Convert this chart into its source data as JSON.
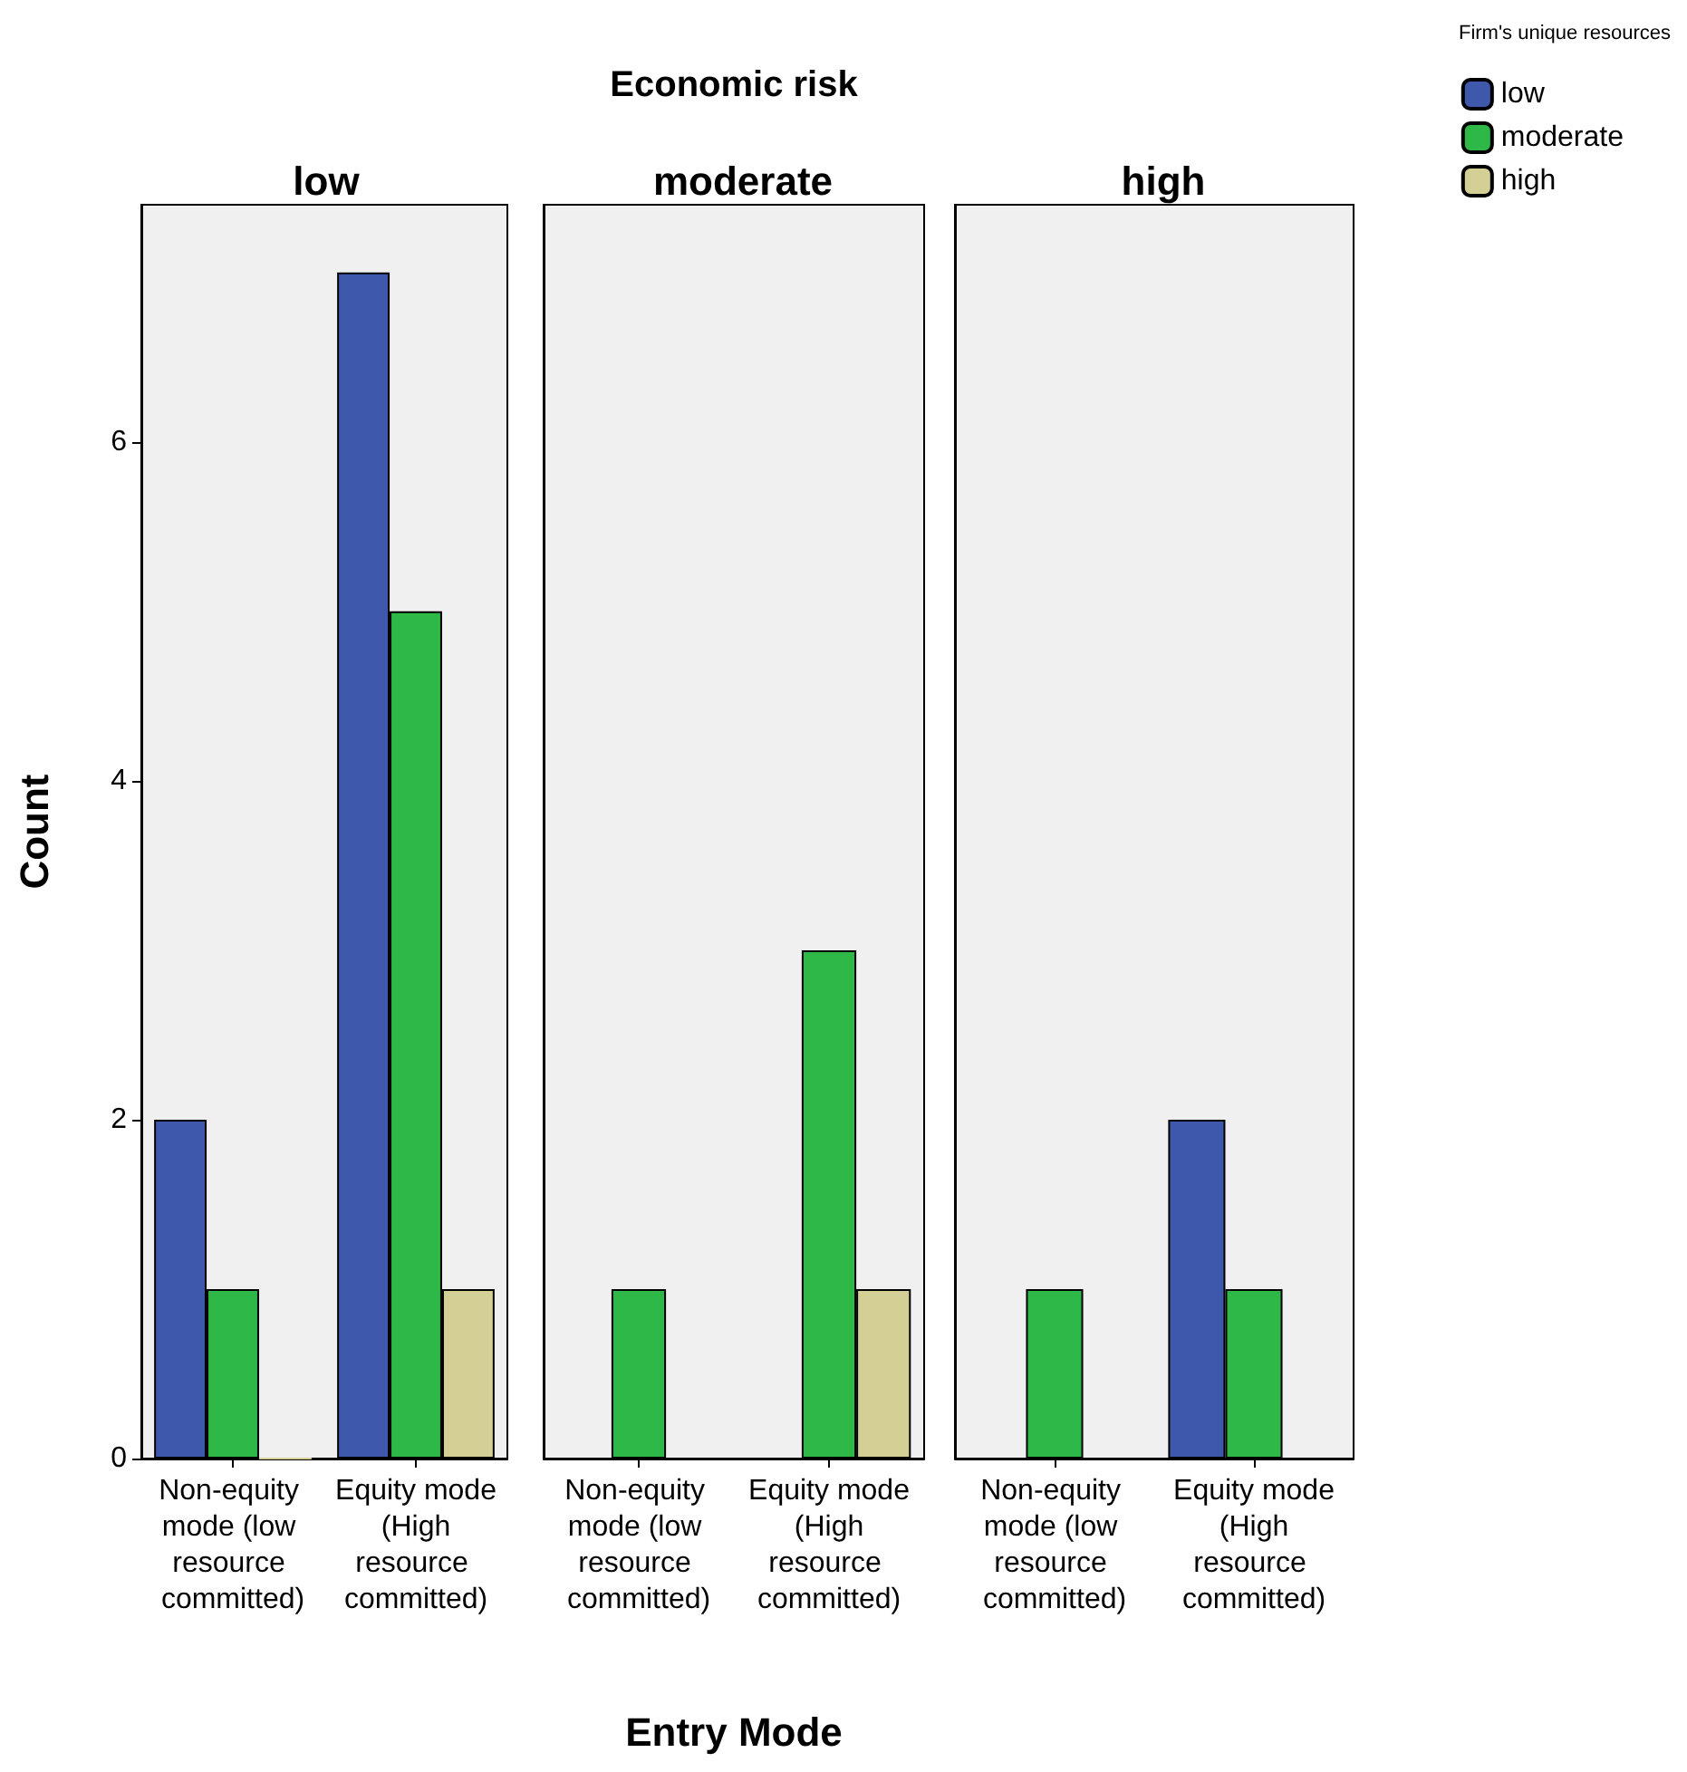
{
  "chart_data": [
    {
      "type": "bar",
      "title": "low",
      "ylabel": "Count",
      "categories": [
        "Non-equity mode (low resource committed)",
        "Equity mode (High resource committed)"
      ],
      "ylim": [
        0,
        7.4
      ],
      "yticks": [
        0,
        2,
        4,
        6
      ],
      "grid": false,
      "series": [
        {
          "color": "#3e58ac",
          "values": [
            2,
            7
          ]
        },
        {
          "color": "#2eb848",
          "values": [
            1,
            5
          ]
        },
        {
          "color": "#d4cf94",
          "values": [
            0,
            1
          ]
        }
      ]
    },
    {
      "type": "bar",
      "title": "Economic risk",
      "subtitle": "moderate",
      "xlabel": "Entry Mode",
      "categories": [
        "Non-equity mode (low resource committed)",
        "Equity mode (High resource committed)"
      ],
      "ylim": [
        0,
        7.4
      ],
      "yticks": [
        0,
        2,
        4,
        6
      ],
      "grid": false,
      "tick_labels": "x",
      "series": [
        {
          "color": "#3e58ac",
          "values": [
            null,
            null
          ]
        },
        {
          "color": "#2eb848",
          "values": [
            1,
            3
          ]
        },
        {
          "color": "#d4cf94",
          "values": [
            null,
            1
          ]
        }
      ]
    },
    {
      "type": "bar",
      "title": "high",
      "categories": [
        "Non-equity mode (low resource committed)",
        "Equity mode (High resource committed)"
      ],
      "ylim": [
        0,
        7.4
      ],
      "yticks": [
        0,
        2,
        4,
        6
      ],
      "grid": false,
      "tick_labels": "x",
      "legend": "top right",
      "legend_title": "Firm's unique resources",
      "series": [
        {
          "name": "low",
          "color": "#3e58ac",
          "values": [
            null,
            2
          ]
        },
        {
          "name": "moderate",
          "color": "#2eb848",
          "values": [
            1,
            1
          ]
        },
        {
          "name": "high",
          "color": "#d4cf94",
          "values": [
            null,
            null
          ]
        }
      ]
    }
  ]
}
